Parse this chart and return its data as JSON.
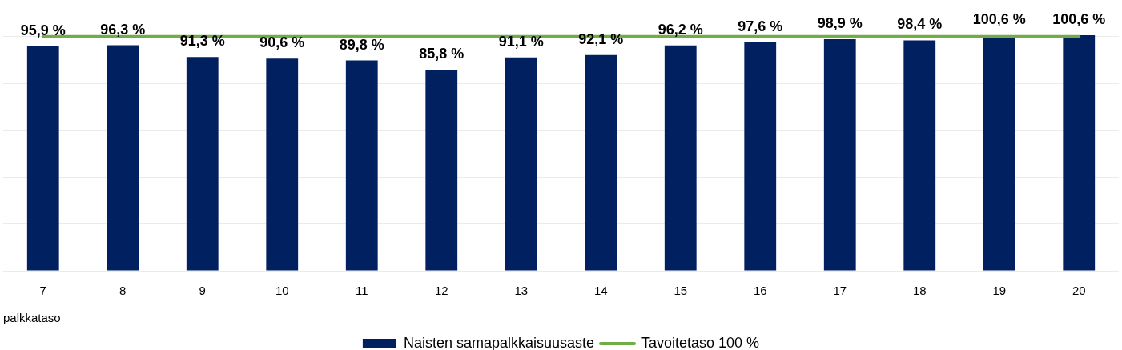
{
  "chart_data": {
    "type": "bar",
    "categories": [
      "7",
      "8",
      "9",
      "10",
      "11",
      "12",
      "13",
      "14",
      "15",
      "16",
      "17",
      "18",
      "19",
      "20"
    ],
    "xlabel": "palkkataso",
    "series": [
      {
        "name": "Naisten samapalkkaisuusaste",
        "color": "#002060",
        "values": [
          95.9,
          96.3,
          91.3,
          90.6,
          89.8,
          85.8,
          91.1,
          92.1,
          96.2,
          97.6,
          98.9,
          98.4,
          100.6,
          100.6
        ],
        "value_labels": [
          "95,9 %",
          "96,3 %",
          "91,3 %",
          "90,6 %",
          "89,8 %",
          "85,8 %",
          "91,1 %",
          "92,1 %",
          "96,2 %",
          "97,6 %",
          "98,9 %",
          "98,4 %",
          "100,6 %",
          "100,6 %"
        ]
      },
      {
        "name": "Tavoitetaso 100 %",
        "type": "line",
        "color": "#70ad47",
        "values": [
          100,
          100,
          100,
          100,
          100,
          100,
          100,
          100,
          100,
          100,
          100,
          100,
          100,
          100
        ]
      }
    ],
    "yticks": [
      {
        "value": 0,
        "label": null
      },
      {
        "value": 20,
        "label": null
      },
      {
        "value": 40,
        "label": null
      },
      {
        "value": 60,
        "label": null
      },
      {
        "value": 80,
        "label": null
      },
      {
        "value": 100,
        "label": null
      }
    ],
    "grid": "y",
    "legend": "bottom",
    "tick_labels": "x"
  }
}
